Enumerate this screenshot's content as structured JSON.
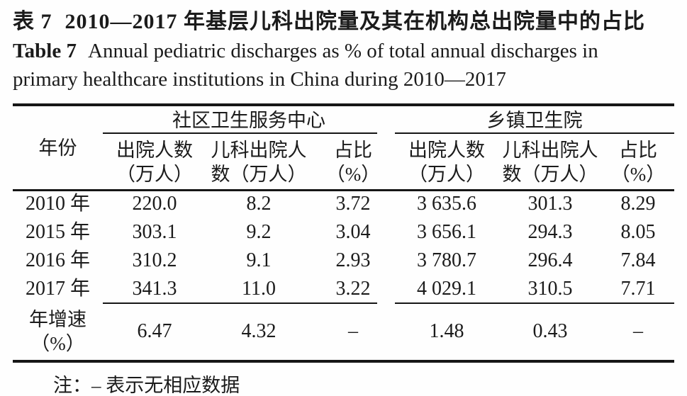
{
  "header": {
    "label_cn": "表 7",
    "title_cn": "2010—2017 年基层儿科出院量及其在机构总出院量中的占比",
    "label_en": "Table 7",
    "title_en_line1": "Annual pediatric discharges as % of total annual discharges in",
    "title_en_line2": "primary healthcare institutions in China during 2010—2017"
  },
  "table": {
    "year_col_header": "年份",
    "groups": [
      {
        "label": "社区卫生服务中心"
      },
      {
        "label": "乡镇卫生院"
      }
    ],
    "sub_headers": [
      {
        "line1": "出院人数",
        "line2": "（万人）"
      },
      {
        "line1": "儿科出院人",
        "line2": "数（万人）"
      },
      {
        "line1": "占比",
        "line2": "（%）"
      },
      {
        "line1": "出院人数",
        "line2": "（万人）"
      },
      {
        "line1": "儿科出院人",
        "line2": "数（万人）"
      },
      {
        "line1": "占比",
        "line2": "（%）"
      }
    ],
    "rows": [
      {
        "year": "2010 年",
        "values": [
          "220.0",
          "8.2",
          "3.72",
          "3 635.6",
          "301.3",
          "8.29"
        ]
      },
      {
        "year": "2015 年",
        "values": [
          "303.1",
          "9.2",
          "3.04",
          "3 656.1",
          "294.3",
          "8.05"
        ]
      },
      {
        "year": "2016 年",
        "values": [
          "310.2",
          "9.1",
          "2.93",
          "3 780.7",
          "296.4",
          "7.84"
        ]
      },
      {
        "year": "2017 年",
        "values": [
          "341.3",
          "11.0",
          "3.22",
          "4 029.1",
          "310.5",
          "7.71"
        ]
      }
    ],
    "growth_row": {
      "label_line1": "年增速",
      "label_line2": "（%）",
      "values": [
        "6.47",
        "4.32",
        "–",
        "1.48",
        "0.43",
        "–"
      ]
    }
  },
  "note": "注：– 表示无相应数据"
}
